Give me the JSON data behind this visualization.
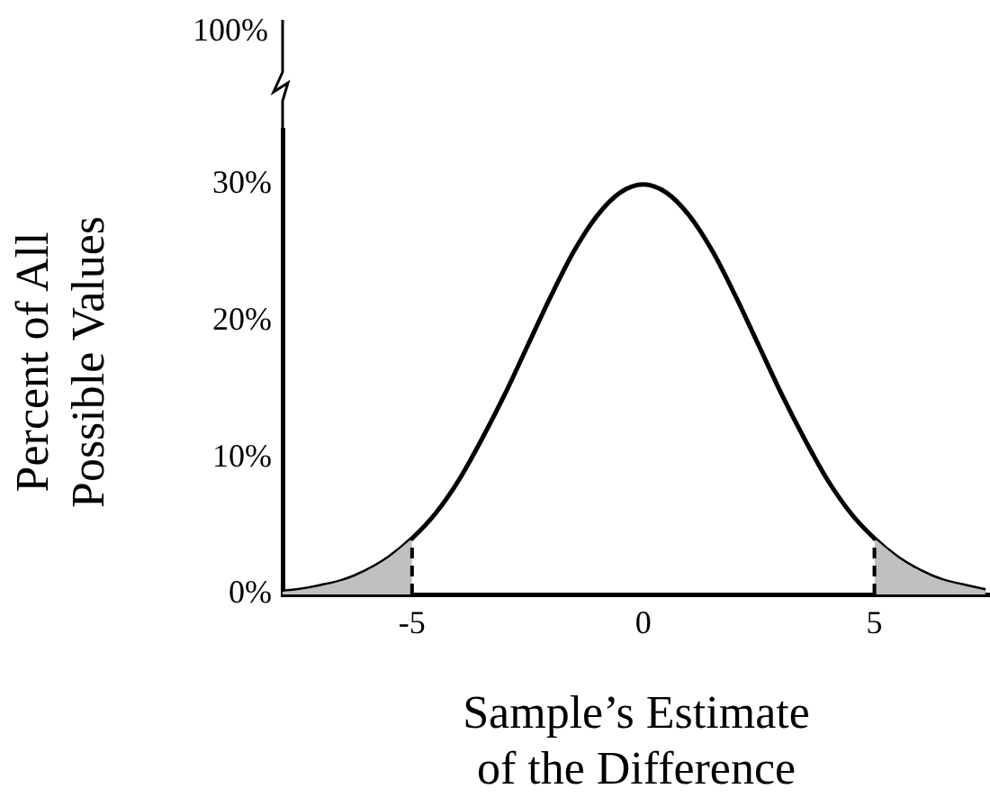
{
  "chart_data": {
    "type": "line",
    "xlabel": "Sample’s Estimate of the Difference",
    "ylabel": "Percent of All Possible Values",
    "x": [
      -7.8,
      -7.5,
      -7,
      -6.5,
      -6,
      -5.5,
      -5,
      -4.5,
      -4,
      -3.5,
      -3,
      -2.5,
      -2,
      -1.5,
      -1,
      -0.5,
      0,
      0.5,
      1,
      1.5,
      2,
      2.5,
      3,
      3.5,
      4,
      4.5,
      5,
      5.5,
      6,
      6.5,
      7,
      7.4
    ],
    "series": [
      {
        "type": "area",
        "color": "#c0c0c0",
        "x": [
          -7.8,
          -7.5,
          -7,
          -6.5,
          -6,
          -5.5,
          -5
        ],
        "values": [
          0.2,
          0.3,
          0.6,
          1.0,
          1.7,
          2.7,
          4.1
        ]
      },
      {
        "type": "area",
        "color": "#c0c0c0",
        "x": [
          5,
          5.5,
          6,
          6.5,
          7,
          7.4
        ],
        "values": [
          4.1,
          2.7,
          1.7,
          1.0,
          0.6,
          0.3
        ]
      },
      {
        "color": "#000000",
        "values": [
          0.2,
          0.3,
          0.6,
          1.0,
          1.7,
          2.7,
          4.1,
          5.9,
          8.3,
          11.3,
          14.6,
          18.2,
          21.8,
          25.1,
          27.7,
          29.4,
          30,
          29.4,
          27.7,
          25.1,
          21.8,
          18.2,
          14.6,
          11.3,
          8.3,
          5.9,
          4.1,
          2.7,
          1.7,
          1.0,
          0.6,
          0.3
        ]
      }
    ],
    "xlim": [
      -7.8,
      7.5
    ],
    "xticks": [
      -5,
      0,
      5
    ],
    "ylim": [
      0,
      34
    ],
    "yticks": [
      {
        "value": 0,
        "label": "0%"
      },
      {
        "value": 10,
        "label": "10%"
      },
      {
        "value": 20,
        "label": "20%"
      },
      {
        "value": 30,
        "label": "30%"
      }
    ],
    "ref_lines": [
      {
        "axis": "x",
        "value": -5,
        "line_style": "dashed"
      },
      {
        "axis": "x",
        "value": 5,
        "line_style": "dashed"
      }
    ],
    "annotations": [
      "100%"
    ],
    "grid": false,
    "legend": false,
    "marker": "none",
    "line_style": "solid"
  }
}
